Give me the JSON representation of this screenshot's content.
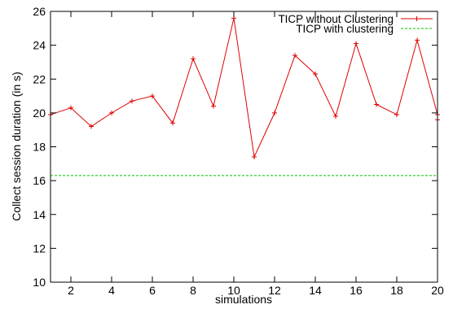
{
  "chart_data": {
    "type": "line",
    "xlabel": "simulations",
    "ylabel": "Collect session duration (in s)",
    "xlim": [
      1,
      20
    ],
    "ylim": [
      10,
      26
    ],
    "x_ticks": [
      2,
      4,
      6,
      8,
      10,
      12,
      14,
      16,
      18,
      20
    ],
    "y_ticks": [
      10,
      12,
      14,
      16,
      18,
      20,
      22,
      24,
      26
    ],
    "grid": false,
    "legend_position": "top-right",
    "series": [
      {
        "name": "TICP without Clustering",
        "color": "#e00000",
        "marker": "plus",
        "line_style": "solid",
        "x": [
          1,
          2,
          3,
          4,
          5,
          6,
          7,
          8,
          9,
          10,
          11,
          12,
          13,
          14,
          15,
          16,
          17,
          18,
          19,
          20,
          20
        ],
        "y": [
          19.9,
          20.3,
          19.2,
          20.0,
          20.7,
          21.0,
          19.4,
          23.2,
          20.4,
          25.6,
          17.4,
          20.0,
          23.4,
          22.3,
          19.8,
          24.1,
          20.5,
          19.9,
          24.3,
          19.9,
          19.6
        ]
      },
      {
        "name": "TICP with clustering",
        "color": "#00c000",
        "marker": "none",
        "line_style": "dashed",
        "x": [
          1,
          20
        ],
        "y": [
          16.3,
          16.3
        ]
      }
    ]
  }
}
